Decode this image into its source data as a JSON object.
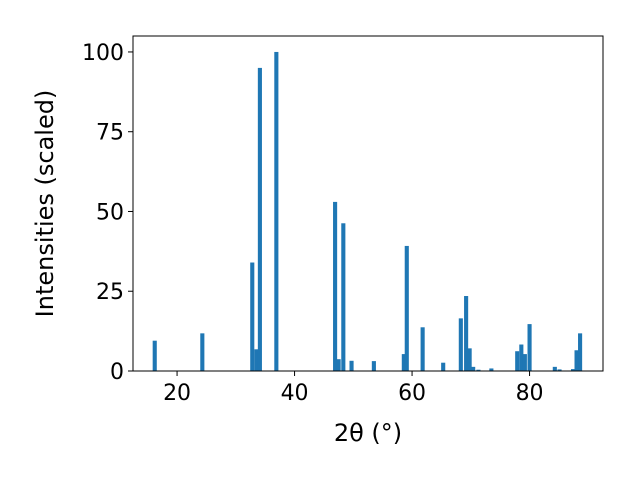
{
  "chart_data": {
    "type": "bar",
    "xlabel": "2θ (°)",
    "ylabel": "Intensities (scaled)",
    "xlim": [
      12.5,
      92.5
    ],
    "ylim": [
      0,
      105
    ],
    "xticks": [
      20,
      40,
      60,
      80
    ],
    "yticks": [
      0,
      25,
      50,
      75,
      100
    ],
    "grid": false,
    "bar_color": "#1f77b4",
    "bar_width": 0.7,
    "x": [
      16.2,
      24.3,
      32.8,
      33.5,
      34.1,
      36.9,
      46.9,
      47.5,
      48.3,
      49.7,
      53.5,
      58.6,
      59.1,
      61.8,
      65.3,
      68.3,
      69.2,
      69.8,
      70.4,
      71.3,
      73.5,
      77.9,
      78.6,
      79.2,
      80.0,
      84.3,
      85.1,
      87.4,
      88.0,
      88.6
    ],
    "values": [
      9.5,
      11.8,
      34.0,
      6.8,
      95.0,
      100.0,
      53.0,
      3.7,
      46.3,
      3.2,
      3.1,
      5.3,
      39.2,
      13.7,
      2.6,
      16.5,
      23.5,
      7.1,
      1.3,
      0.4,
      0.8,
      6.2,
      8.3,
      5.3,
      14.7,
      1.3,
      0.5,
      0.6,
      6.5,
      11.8
    ]
  }
}
